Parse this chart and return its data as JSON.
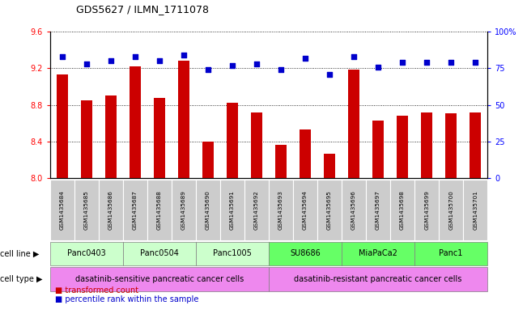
{
  "title": "GDS5627 / ILMN_1711078",
  "samples": [
    "GSM1435684",
    "GSM1435685",
    "GSM1435686",
    "GSM1435687",
    "GSM1435688",
    "GSM1435689",
    "GSM1435690",
    "GSM1435691",
    "GSM1435692",
    "GSM1435693",
    "GSM1435694",
    "GSM1435695",
    "GSM1435696",
    "GSM1435697",
    "GSM1435698",
    "GSM1435699",
    "GSM1435700",
    "GSM1435701"
  ],
  "transformed_count": [
    9.13,
    8.85,
    8.9,
    9.22,
    8.88,
    9.28,
    8.4,
    8.82,
    8.72,
    8.36,
    8.53,
    8.27,
    9.19,
    8.63,
    8.68,
    8.72,
    8.71,
    8.72
  ],
  "percentile_rank": [
    83,
    78,
    80,
    83,
    80,
    84,
    74,
    77,
    78,
    74,
    82,
    71,
    83,
    76,
    79,
    79,
    79,
    79
  ],
  "bar_color": "#cc0000",
  "dot_color": "#0000cc",
  "ylim_left": [
    8.0,
    9.6
  ],
  "ylim_right": [
    0,
    100
  ],
  "yticks_left": [
    8.0,
    8.4,
    8.8,
    9.2,
    9.6
  ],
  "yticks_right": [
    0,
    25,
    50,
    75,
    100
  ],
  "cell_lines": [
    {
      "label": "Panc0403",
      "start": 0,
      "end": 2,
      "color": "#ccffcc"
    },
    {
      "label": "Panc0504",
      "start": 3,
      "end": 5,
      "color": "#ccffcc"
    },
    {
      "label": "Panc1005",
      "start": 6,
      "end": 8,
      "color": "#ccffcc"
    },
    {
      "label": "SU8686",
      "start": 9,
      "end": 11,
      "color": "#66ff66"
    },
    {
      "label": "MiaPaCa2",
      "start": 12,
      "end": 14,
      "color": "#66ff66"
    },
    {
      "label": "Panc1",
      "start": 15,
      "end": 17,
      "color": "#66ff66"
    }
  ],
  "cell_types": [
    {
      "label": "dasatinib-sensitive pancreatic cancer cells",
      "start": 0,
      "end": 8,
      "color": "#ee88ee"
    },
    {
      "label": "dasatinib-resistant pancreatic cancer cells",
      "start": 9,
      "end": 17,
      "color": "#ee88ee"
    }
  ],
  "cell_line_label": "cell line",
  "cell_type_label": "cell type",
  "legend_bar": "transformed count",
  "legend_dot": "percentile rank within the sample",
  "sample_box_color": "#cccccc",
  "left_margin_color": "#f0f0f0"
}
